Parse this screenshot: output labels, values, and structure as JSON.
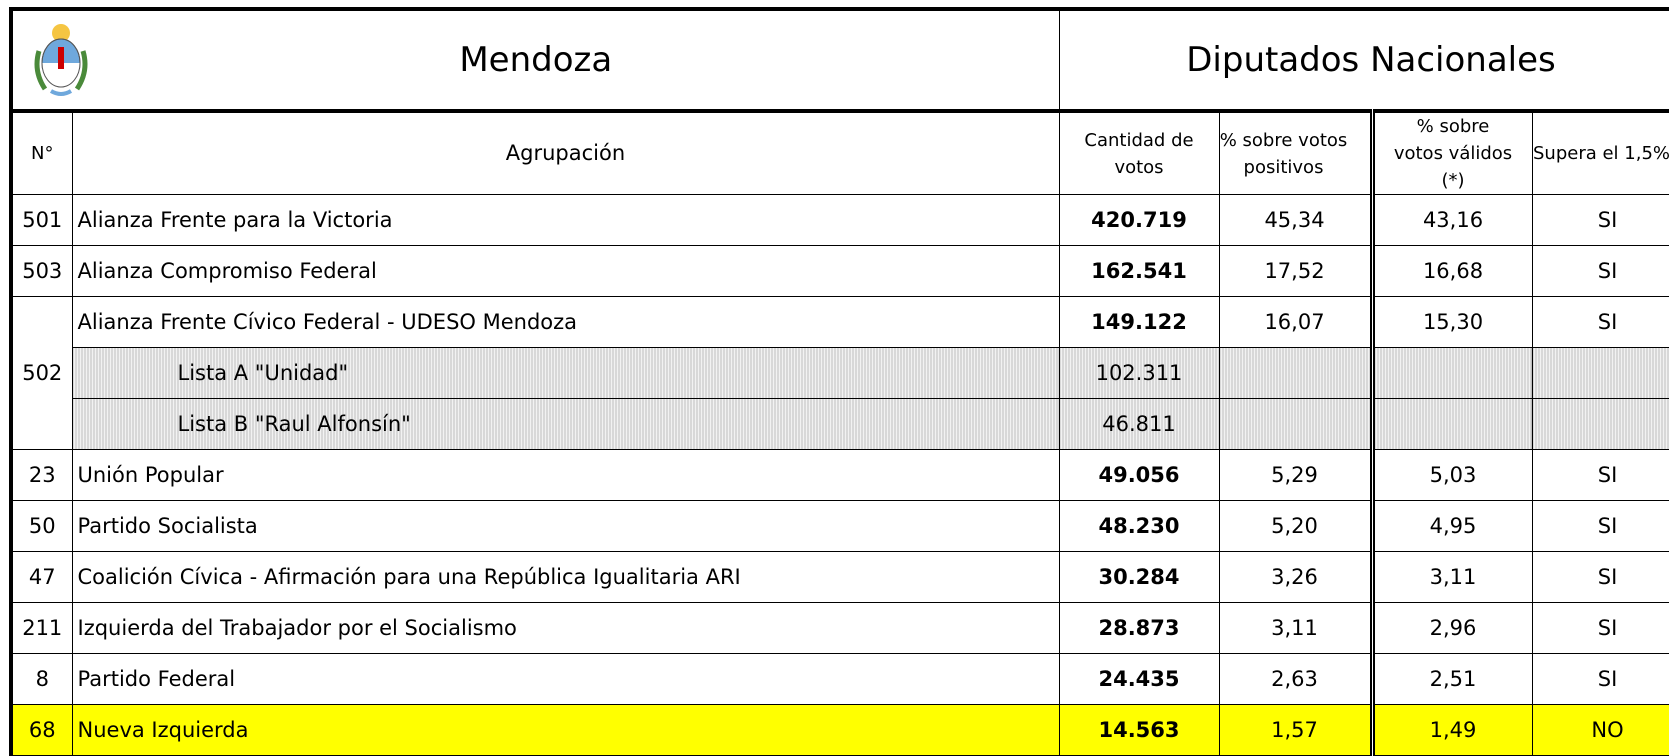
{
  "header": {
    "title": "Mendoza",
    "office": "Diputados Nacionales"
  },
  "columns": {
    "number": "N°",
    "party": "Agrupación",
    "votes": "Cantidad de votos",
    "pct_positive": "% sobre votos positivos",
    "pct_valid": "% sobre votos válidos (*)",
    "exceeds": "Supera el 1,5%"
  },
  "rows": [
    {
      "number": "501",
      "name": "Alianza Frente para la Victoria",
      "votes": "420.719",
      "pct_positive": "45,34",
      "pct_valid": "43,16",
      "exceeds": "SI"
    },
    {
      "number": "503",
      "name": "Alianza Compromiso Federal",
      "votes": "162.541",
      "pct_positive": "17,52",
      "pct_valid": "16,68",
      "exceeds": "SI"
    },
    {
      "number": "502",
      "name": "Alianza Frente Cívico Federal - UDESO Mendoza",
      "votes": "149.122",
      "pct_positive": "16,07",
      "pct_valid": "15,30",
      "exceeds": "SI",
      "sublists": [
        {
          "name": "Lista A \"Unidad\"",
          "votes": "102.311"
        },
        {
          "name": "Lista B \"Raul Alfonsín\"",
          "votes": "46.811"
        }
      ]
    },
    {
      "number": "23",
      "name": "Unión Popular",
      "votes": "49.056",
      "pct_positive": "5,29",
      "pct_valid": "5,03",
      "exceeds": "SI"
    },
    {
      "number": "50",
      "name": "Partido Socialista",
      "votes": "48.230",
      "pct_positive": "5,20",
      "pct_valid": "4,95",
      "exceeds": "SI"
    },
    {
      "number": "47",
      "name": "Coalición Cívica - Afirmación para una República Igualitaria ARI",
      "votes": "30.284",
      "pct_positive": "3,26",
      "pct_valid": "3,11",
      "exceeds": "SI"
    },
    {
      "number": "211",
      "name": "Izquierda del Trabajador por el Socialismo",
      "votes": "28.873",
      "pct_positive": "3,11",
      "pct_valid": "2,96",
      "exceeds": "SI"
    },
    {
      "number": "8",
      "name": "Partido Federal",
      "votes": "24.435",
      "pct_positive": "2,63",
      "pct_valid": "2,51",
      "exceeds": "SI"
    },
    {
      "number": "68",
      "name": "Nueva Izquierda",
      "votes": "14.563",
      "pct_positive": "1,57",
      "pct_valid": "1,49",
      "exceeds": "NO"
    }
  ]
}
